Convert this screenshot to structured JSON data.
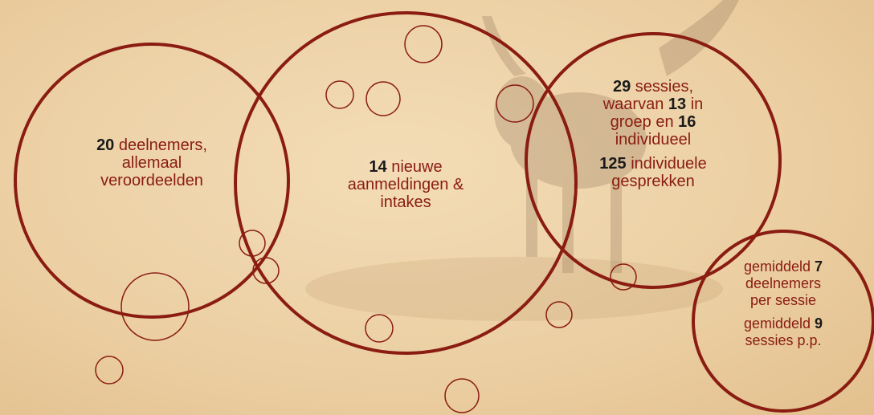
{
  "colors": {
    "ring": "#8a1c12",
    "text": "#8a1c12",
    "number": "#1a1a1a",
    "background": "#efd4aa"
  },
  "circles": {
    "deelnemers": {
      "number": "20",
      "line1_rest": " deelnemers,",
      "line2": "allemaal",
      "line3": "veroordeelden"
    },
    "aanmeldingen": {
      "number": "14",
      "line1_rest": " nieuwe",
      "line2": "aanmeldingen &",
      "line3": "intakes"
    },
    "sessies": {
      "p1_number": "29",
      "p1_line1_rest": " sessies,",
      "p1_line2_pre": "waarvan ",
      "p1_line2_number": "13",
      "p1_line2_post": " in",
      "p1_line3_pre": "groep en ",
      "p1_line3_number": "16",
      "p1_line4": "individueel",
      "p2_number": "125",
      "p2_line1_rest": " individuele",
      "p2_line2": "gesprekken"
    },
    "gemiddeld": {
      "p1_line1_pre": "gemiddeld ",
      "p1_line1_number": "7",
      "p1_line2": "deelnemers",
      "p1_line3": "per sessie",
      "p2_line1_pre": "gemiddeld ",
      "p2_line1_number": "9",
      "p2_line2": "sessies p.p."
    }
  }
}
